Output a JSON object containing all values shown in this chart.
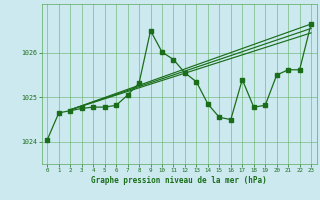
{
  "xlabel": "Graphe pression niveau de la mer (hPa)",
  "bg_color": "#cce9f0",
  "grid_color": "#5aaa5a",
  "line_color": "#1a6e1a",
  "x_ticks": [
    0,
    1,
    2,
    3,
    4,
    5,
    6,
    7,
    8,
    9,
    10,
    11,
    12,
    13,
    14,
    15,
    16,
    17,
    18,
    19,
    20,
    21,
    22,
    23
  ],
  "y_ticks": [
    1024,
    1025,
    1026
  ],
  "ylim": [
    1023.5,
    1027.1
  ],
  "xlim": [
    -0.5,
    23.5
  ],
  "series_main": {
    "x": [
      0,
      1,
      2,
      3,
      4,
      5,
      6,
      7,
      8,
      9,
      10,
      11,
      12,
      13,
      14,
      15,
      16,
      17,
      18,
      19,
      20,
      21,
      22,
      23
    ],
    "y": [
      1024.05,
      1024.65,
      1024.7,
      1024.75,
      1024.78,
      1024.78,
      1024.82,
      1025.05,
      1025.32,
      1026.5,
      1026.02,
      1025.85,
      1025.55,
      1025.35,
      1024.85,
      1024.55,
      1024.5,
      1025.4,
      1024.78,
      1024.82,
      1025.5,
      1025.62,
      1025.62,
      1026.65
    ]
  },
  "series_trend1": {
    "x": [
      2,
      23
    ],
    "y": [
      1024.72,
      1026.65
    ]
  },
  "series_trend2": {
    "x": [
      2,
      23
    ],
    "y": [
      1024.72,
      1026.55
    ]
  },
  "series_trend3": {
    "x": [
      2,
      23
    ],
    "y": [
      1024.72,
      1026.45
    ]
  }
}
